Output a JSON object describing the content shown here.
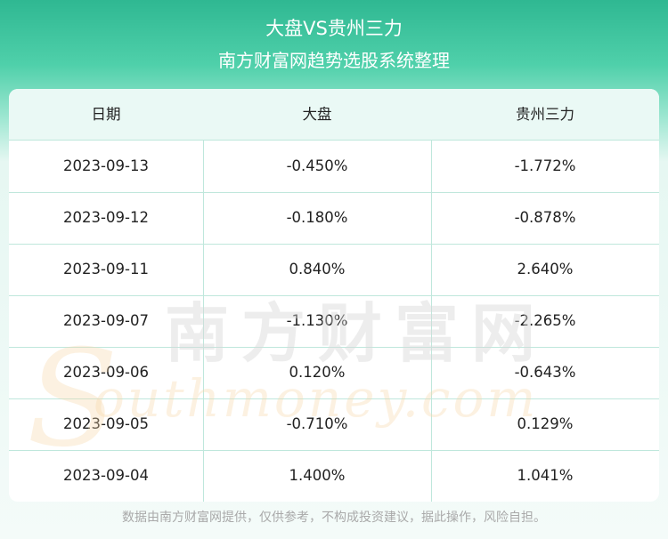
{
  "header": {
    "title": "大盘VS贵州三力",
    "subtitle": "南方财富网趋势选股系统整理"
  },
  "table": {
    "columns": [
      "日期",
      "大盘",
      "贵州三力"
    ],
    "rows": [
      [
        "2023-09-13",
        "-0.450%",
        "-1.772%"
      ],
      [
        "2023-09-12",
        "-0.180%",
        "-0.878%"
      ],
      [
        "2023-09-11",
        "0.840%",
        "2.640%"
      ],
      [
        "2023-09-07",
        "-1.130%",
        "-2.265%"
      ],
      [
        "2023-09-06",
        "0.120%",
        "-0.643%"
      ],
      [
        "2023-09-05",
        "-0.710%",
        "0.129%"
      ],
      [
        "2023-09-04",
        "1.400%",
        "1.041%"
      ]
    ]
  },
  "watermark": {
    "cn": "南方财富网",
    "en": "southmoney.com"
  },
  "footer": {
    "note": "数据由南方财富网提供，仅供参考，不构成投资建议，据此操作，风险自担。"
  },
  "colors": {
    "brand": "#39c39c",
    "header_row": "#eaf9f5",
    "grid": "#bfe7dc",
    "text": "#222222"
  }
}
